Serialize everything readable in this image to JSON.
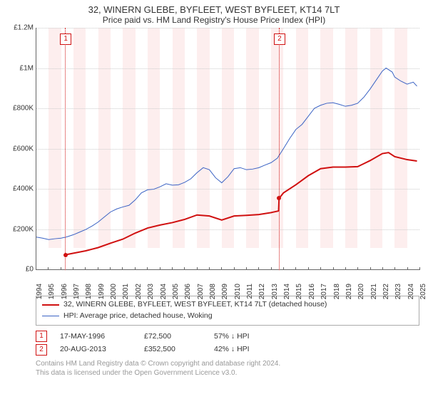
{
  "title": "32, WINERN GLEBE, BYFLEET, WEST BYFLEET, KT14 7LT",
  "subtitle": "Price paid vs. HM Land Registry's House Price Index (HPI)",
  "chart": {
    "type": "line",
    "y": {
      "min": 0,
      "max": 1200000,
      "step": 200000,
      "labels": [
        "£0",
        "£200K",
        "£400K",
        "£600K",
        "£800K",
        "£1M",
        "£1.2M"
      ]
    },
    "x": {
      "min": 1994,
      "max": 2025,
      "labels": [
        "1994",
        "1995",
        "1996",
        "1997",
        "1998",
        "1999",
        "2000",
        "2001",
        "2002",
        "2003",
        "2004",
        "2005",
        "2006",
        "2007",
        "2008",
        "2009",
        "2010",
        "2011",
        "2012",
        "2013",
        "2014",
        "2015",
        "2016",
        "2017",
        "2018",
        "2019",
        "2020",
        "2021",
        "2022",
        "2023",
        "2024",
        "2025"
      ]
    },
    "bg_band_color": "#fdeeee",
    "grid_color": "#cccccc",
    "series": [
      {
        "name": "property",
        "label": "32, WINERN GLEBE, BYFLEET, WEST BYFLEET, KT14 7LT (detached house)",
        "color": "#d01010",
        "width": 2,
        "data": [
          [
            1996.37,
            72500
          ],
          [
            1997,
            80000
          ],
          [
            1998,
            92000
          ],
          [
            1999,
            108000
          ],
          [
            2000,
            130000
          ],
          [
            2001,
            150000
          ],
          [
            2002,
            180000
          ],
          [
            2003,
            205000
          ],
          [
            2004,
            220000
          ],
          [
            2005,
            232000
          ],
          [
            2006,
            248000
          ],
          [
            2007,
            270000
          ],
          [
            2008,
            265000
          ],
          [
            2009,
            245000
          ],
          [
            2010,
            265000
          ],
          [
            2011,
            268000
          ],
          [
            2012,
            272000
          ],
          [
            2013,
            282000
          ],
          [
            2013.6,
            290000
          ],
          [
            2013.64,
            352500
          ],
          [
            2014,
            380000
          ],
          [
            2015,
            420000
          ],
          [
            2016,
            465000
          ],
          [
            2017,
            500000
          ],
          [
            2018,
            508000
          ],
          [
            2019,
            508000
          ],
          [
            2020,
            510000
          ],
          [
            2021,
            540000
          ],
          [
            2022,
            575000
          ],
          [
            2022.5,
            580000
          ],
          [
            2023,
            560000
          ],
          [
            2024,
            545000
          ],
          [
            2024.8,
            538000
          ]
        ]
      },
      {
        "name": "hpi",
        "label": "HPI: Average price, detached house, Woking",
        "color": "#3a62c4",
        "width": 1,
        "data": [
          [
            1994,
            160000
          ],
          [
            1994.5,
            155000
          ],
          [
            1995,
            148000
          ],
          [
            1995.5,
            152000
          ],
          [
            1996,
            155000
          ],
          [
            1996.5,
            162000
          ],
          [
            1997,
            172000
          ],
          [
            1997.5,
            185000
          ],
          [
            1998,
            198000
          ],
          [
            1998.5,
            215000
          ],
          [
            1999,
            235000
          ],
          [
            1999.5,
            260000
          ],
          [
            2000,
            285000
          ],
          [
            2000.5,
            300000
          ],
          [
            2001,
            310000
          ],
          [
            2001.5,
            318000
          ],
          [
            2002,
            345000
          ],
          [
            2002.5,
            380000
          ],
          [
            2003,
            395000
          ],
          [
            2003.5,
            398000
          ],
          [
            2004,
            410000
          ],
          [
            2004.5,
            425000
          ],
          [
            2005,
            418000
          ],
          [
            2005.5,
            420000
          ],
          [
            2006,
            432000
          ],
          [
            2006.5,
            450000
          ],
          [
            2007,
            480000
          ],
          [
            2007.5,
            505000
          ],
          [
            2008,
            495000
          ],
          [
            2008.5,
            455000
          ],
          [
            2009,
            430000
          ],
          [
            2009.5,
            460000
          ],
          [
            2010,
            500000
          ],
          [
            2010.5,
            505000
          ],
          [
            2011,
            495000
          ],
          [
            2011.5,
            498000
          ],
          [
            2012,
            505000
          ],
          [
            2012.5,
            518000
          ],
          [
            2013,
            530000
          ],
          [
            2013.5,
            552000
          ],
          [
            2014,
            600000
          ],
          [
            2014.5,
            650000
          ],
          [
            2015,
            695000
          ],
          [
            2015.5,
            720000
          ],
          [
            2016,
            760000
          ],
          [
            2016.5,
            800000
          ],
          [
            2017,
            815000
          ],
          [
            2017.5,
            825000
          ],
          [
            2018,
            828000
          ],
          [
            2018.5,
            820000
          ],
          [
            2019,
            810000
          ],
          [
            2019.5,
            815000
          ],
          [
            2020,
            825000
          ],
          [
            2020.5,
            855000
          ],
          [
            2021,
            895000
          ],
          [
            2021.5,
            940000
          ],
          [
            2022,
            985000
          ],
          [
            2022.3,
            1000000
          ],
          [
            2022.8,
            980000
          ],
          [
            2023,
            955000
          ],
          [
            2023.5,
            935000
          ],
          [
            2024,
            920000
          ],
          [
            2024.5,
            930000
          ],
          [
            2024.8,
            910000
          ]
        ]
      }
    ],
    "markers": [
      {
        "num": "1",
        "year": 1996.37,
        "price": 72500,
        "color": "#d01010"
      },
      {
        "num": "2",
        "year": 2013.64,
        "price": 352500,
        "color": "#d01010"
      }
    ]
  },
  "sales": [
    {
      "num": "1",
      "date": "17-MAY-1996",
      "price": "£72,500",
      "diff": "57% ↓ HPI",
      "color": "#d01010"
    },
    {
      "num": "2",
      "date": "20-AUG-2013",
      "price": "£352,500",
      "diff": "42% ↓ HPI",
      "color": "#d01010"
    }
  ],
  "attribution": {
    "line1": "Contains HM Land Registry data © Crown copyright and database right 2024.",
    "line2": "This data is licensed under the Open Government Licence v3.0."
  }
}
